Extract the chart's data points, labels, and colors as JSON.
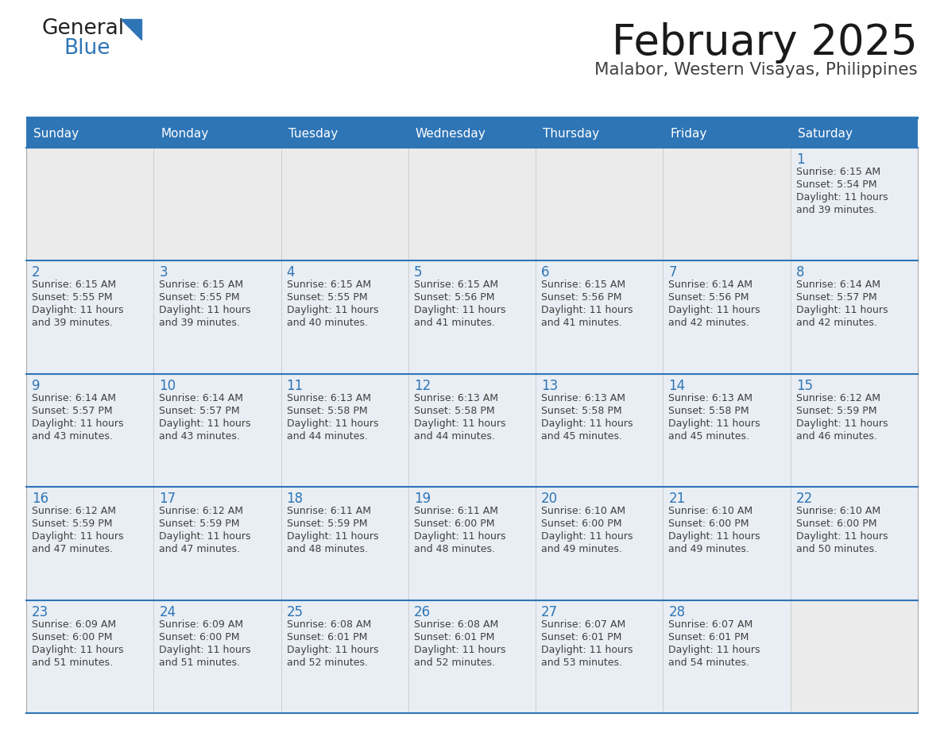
{
  "title": "February 2025",
  "subtitle": "Malabor, Western Visayas, Philippines",
  "header_bg": "#2E75B6",
  "header_text_color": "#FFFFFF",
  "cell_bg": "#E9EEF4",
  "cell_bg_empty_row": "#FFFFFF",
  "day_number_color": "#2E75B6",
  "text_color": "#404040",
  "line_color": "#2E75B6",
  "border_color": "#AAAAAA",
  "days_of_week": [
    "Sunday",
    "Monday",
    "Tuesday",
    "Wednesday",
    "Thursday",
    "Friday",
    "Saturday"
  ],
  "cal_data": [
    [
      null,
      null,
      null,
      null,
      null,
      null,
      1
    ],
    [
      2,
      3,
      4,
      5,
      6,
      7,
      8
    ],
    [
      9,
      10,
      11,
      12,
      13,
      14,
      15
    ],
    [
      16,
      17,
      18,
      19,
      20,
      21,
      22
    ],
    [
      23,
      24,
      25,
      26,
      27,
      28,
      null
    ]
  ],
  "sunrise": {
    "1": "6:15 AM",
    "2": "6:15 AM",
    "3": "6:15 AM",
    "4": "6:15 AM",
    "5": "6:15 AM",
    "6": "6:15 AM",
    "7": "6:14 AM",
    "8": "6:14 AM",
    "9": "6:14 AM",
    "10": "6:14 AM",
    "11": "6:13 AM",
    "12": "6:13 AM",
    "13": "6:13 AM",
    "14": "6:13 AM",
    "15": "6:12 AM",
    "16": "6:12 AM",
    "17": "6:12 AM",
    "18": "6:11 AM",
    "19": "6:11 AM",
    "20": "6:10 AM",
    "21": "6:10 AM",
    "22": "6:10 AM",
    "23": "6:09 AM",
    "24": "6:09 AM",
    "25": "6:08 AM",
    "26": "6:08 AM",
    "27": "6:07 AM",
    "28": "6:07 AM"
  },
  "sunset": {
    "1": "5:54 PM",
    "2": "5:55 PM",
    "3": "5:55 PM",
    "4": "5:55 PM",
    "5": "5:56 PM",
    "6": "5:56 PM",
    "7": "5:56 PM",
    "8": "5:57 PM",
    "9": "5:57 PM",
    "10": "5:57 PM",
    "11": "5:58 PM",
    "12": "5:58 PM",
    "13": "5:58 PM",
    "14": "5:58 PM",
    "15": "5:59 PM",
    "16": "5:59 PM",
    "17": "5:59 PM",
    "18": "5:59 PM",
    "19": "6:00 PM",
    "20": "6:00 PM",
    "21": "6:00 PM",
    "22": "6:00 PM",
    "23": "6:00 PM",
    "24": "6:00 PM",
    "25": "6:01 PM",
    "26": "6:01 PM",
    "27": "6:01 PM",
    "28": "6:01 PM"
  },
  "daylight": {
    "1": "11 hours\nand 39 minutes.",
    "2": "11 hours\nand 39 minutes.",
    "3": "11 hours\nand 39 minutes.",
    "4": "11 hours\nand 40 minutes.",
    "5": "11 hours\nand 41 minutes.",
    "6": "11 hours\nand 41 minutes.",
    "7": "11 hours\nand 42 minutes.",
    "8": "11 hours\nand 42 minutes.",
    "9": "11 hours\nand 43 minutes.",
    "10": "11 hours\nand 43 minutes.",
    "11": "11 hours\nand 44 minutes.",
    "12": "11 hours\nand 44 minutes.",
    "13": "11 hours\nand 45 minutes.",
    "14": "11 hours\nand 45 minutes.",
    "15": "11 hours\nand 46 minutes.",
    "16": "11 hours\nand 47 minutes.",
    "17": "11 hours\nand 47 minutes.",
    "18": "11 hours\nand 48 minutes.",
    "19": "11 hours\nand 48 minutes.",
    "20": "11 hours\nand 49 minutes.",
    "21": "11 hours\nand 49 minutes.",
    "22": "11 hours\nand 50 minutes.",
    "23": "11 hours\nand 51 minutes.",
    "24": "11 hours\nand 51 minutes.",
    "25": "11 hours\nand 52 minutes.",
    "26": "11 hours\nand 52 minutes.",
    "27": "11 hours\nand 53 minutes.",
    "28": "11 hours\nand 54 minutes."
  }
}
